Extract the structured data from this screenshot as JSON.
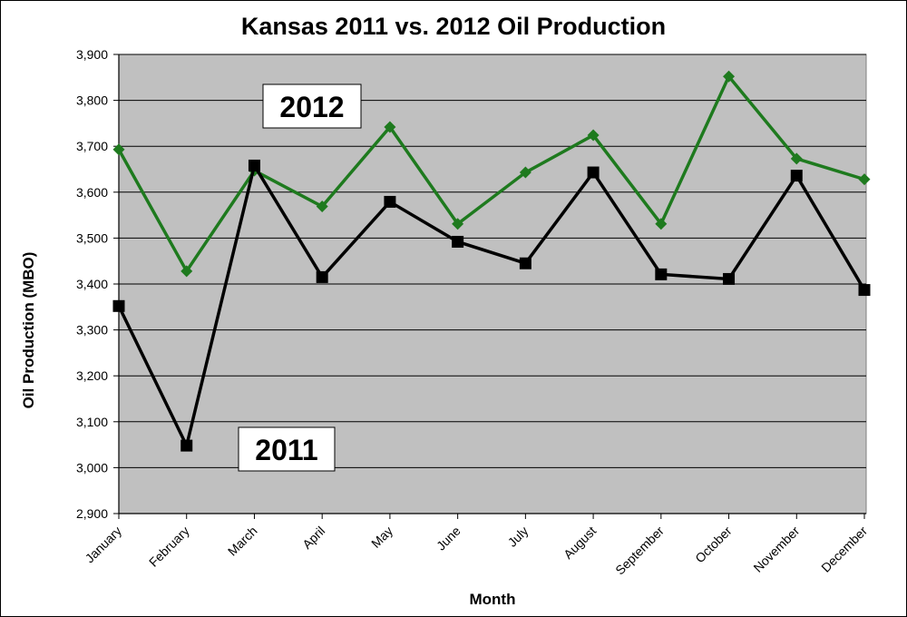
{
  "chart_data": {
    "type": "line",
    "title": "Kansas 2011 vs. 2012 Oil Production",
    "xlabel": "Month",
    "ylabel": "Oil Production (MBO)",
    "ylim": [
      2900,
      3900
    ],
    "y_ticks": [
      "2,900",
      "3,000",
      "3,100",
      "3,200",
      "3,300",
      "3,400",
      "3,500",
      "3,600",
      "3,700",
      "3,800",
      "3,900"
    ],
    "grid": true,
    "categories": [
      "January",
      "February",
      "March",
      "April",
      "May",
      "June",
      "July",
      "August",
      "September",
      "October",
      "November",
      "December"
    ],
    "series": [
      {
        "name": "2012",
        "color": "#1e7a1e",
        "marker": "diamond",
        "values": [
          3693,
          3428,
          3647,
          3569,
          3742,
          3531,
          3643,
          3724,
          3531,
          3852,
          3673,
          3628
        ]
      },
      {
        "name": "2011",
        "color": "#000000",
        "marker": "square",
        "values": [
          3352,
          3048,
          3658,
          3415,
          3579,
          3492,
          3445,
          3643,
          3421,
          3411,
          3636,
          3387
        ]
      }
    ],
    "plot_background": "#c0c0c0"
  }
}
